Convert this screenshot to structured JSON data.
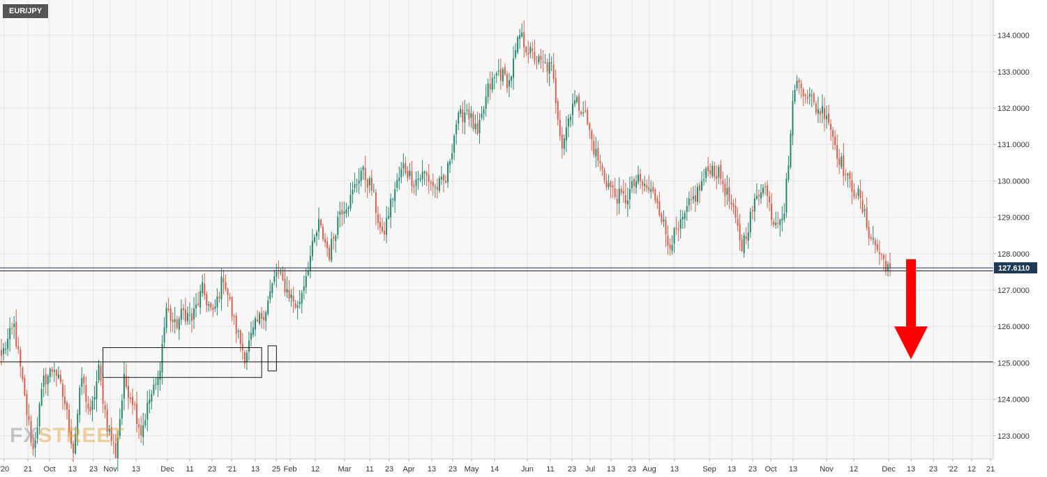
{
  "symbol": "EUR/JPY",
  "logo": {
    "part1": "FX",
    "part2": "STREET"
  },
  "colors": {
    "up": "#26866b",
    "down": "#d5604b",
    "grid": "#e6e6ea",
    "plot_bg": "#f7f7f8",
    "arrow": "#ff0000",
    "price_tag": "#1f3a57"
  },
  "chart_data": {
    "type": "candlestick",
    "title": "",
    "ylim": [
      122.4,
      134.9
    ],
    "y_ticks": [
      "123.0000",
      "124.0000",
      "125.0000",
      "126.0000",
      "127.0000",
      "128.0000",
      "129.0000",
      "130.0000",
      "131.0000",
      "132.0000",
      "133.0000",
      "134.0000"
    ],
    "x_ticks": [
      "'20",
      "21",
      "Oct",
      "13",
      "23",
      "Nov",
      "13",
      "Dec",
      "11",
      "23",
      "'21",
      "13",
      "25",
      "Feb",
      "12",
      "Mar",
      "11",
      "23",
      "Apr",
      "13",
      "23",
      "May",
      "14",
      "Jun",
      "11",
      "23",
      "Jul",
      "13",
      "23",
      "Aug",
      "13",
      "Sep",
      "13",
      "23",
      "Oct",
      "13",
      "Nov",
      "12",
      "Dec",
      "13",
      "23",
      "'22",
      "12",
      "21"
    ],
    "last_price": 127.611,
    "last_price_label": "127.6110",
    "horizontal_lines": [
      127.53,
      125.03
    ],
    "anchors": [
      [
        0,
        125.2
      ],
      [
        6,
        126.0
      ],
      [
        11,
        124.0
      ],
      [
        15,
        122.6
      ],
      [
        20,
        124.5
      ],
      [
        25,
        124.9
      ],
      [
        30,
        123.9
      ],
      [
        34,
        122.6
      ],
      [
        38,
        124.6
      ],
      [
        42,
        123.5
      ],
      [
        46,
        124.8
      ],
      [
        50,
        123.3
      ],
      [
        54,
        122.5
      ],
      [
        58,
        124.5
      ],
      [
        62,
        124.0
      ],
      [
        66,
        123.1
      ],
      [
        70,
        124.0
      ],
      [
        74,
        124.5
      ],
      [
        78,
        126.5
      ],
      [
        82,
        126.0
      ],
      [
        86,
        126.4
      ],
      [
        90,
        126.2
      ],
      [
        95,
        127.0
      ],
      [
        100,
        126.3
      ],
      [
        105,
        127.4
      ],
      [
        110,
        126.1
      ],
      [
        115,
        125.2
      ],
      [
        120,
        126.0
      ],
      [
        125,
        126.5
      ],
      [
        130,
        127.5
      ],
      [
        135,
        127.0
      ],
      [
        140,
        126.5
      ],
      [
        145,
        127.7
      ],
      [
        150,
        128.8
      ],
      [
        155,
        128.0
      ],
      [
        160,
        129.2
      ],
      [
        165,
        129.5
      ],
      [
        170,
        130.3
      ],
      [
        175,
        129.8
      ],
      [
        180,
        128.4
      ],
      [
        185,
        129.6
      ],
      [
        190,
        130.4
      ],
      [
        195,
        130.0
      ],
      [
        200,
        130.2
      ],
      [
        205,
        129.8
      ],
      [
        210,
        130.0
      ],
      [
        215,
        131.6
      ],
      [
        220,
        132.0
      ],
      [
        225,
        131.2
      ],
      [
        230,
        132.5
      ],
      [
        235,
        133.0
      ],
      [
        240,
        132.7
      ],
      [
        245,
        134.0
      ],
      [
        250,
        133.5
      ],
      [
        255,
        133.2
      ],
      [
        260,
        133.1
      ],
      [
        265,
        131.0
      ],
      [
        270,
        132.2
      ],
      [
        275,
        132.0
      ],
      [
        280,
        130.9
      ],
      [
        285,
        130.1
      ],
      [
        290,
        129.6
      ],
      [
        295,
        129.5
      ],
      [
        300,
        130.0
      ],
      [
        305,
        129.8
      ],
      [
        310,
        129.5
      ],
      [
        315,
        128.3
      ],
      [
        320,
        128.6
      ],
      [
        325,
        129.3
      ],
      [
        330,
        129.8
      ],
      [
        335,
        130.4
      ],
      [
        340,
        130.1
      ],
      [
        345,
        129.3
      ],
      [
        350,
        128.2
      ],
      [
        355,
        129.2
      ],
      [
        360,
        130.0
      ],
      [
        365,
        128.9
      ],
      [
        370,
        129.2
      ],
      [
        375,
        132.7
      ],
      [
        380,
        132.5
      ],
      [
        385,
        132.0
      ],
      [
        390,
        131.9
      ],
      [
        395,
        130.8
      ],
      [
        400,
        130.0
      ],
      [
        405,
        129.6
      ],
      [
        410,
        128.6
      ],
      [
        415,
        128.0
      ],
      [
        420,
        127.6
      ]
    ],
    "total_bars": 421,
    "annotations": [
      {
        "type": "box",
        "x0": 48,
        "x1": 123,
        "y0": 124.6,
        "y1": 125.42
      },
      {
        "type": "box",
        "x0": 126,
        "x1": 130,
        "y0": 124.78,
        "y1": 125.47
      },
      {
        "type": "arrow",
        "direction": "down",
        "y_from": 127.85,
        "y_to": 125.1
      }
    ]
  }
}
